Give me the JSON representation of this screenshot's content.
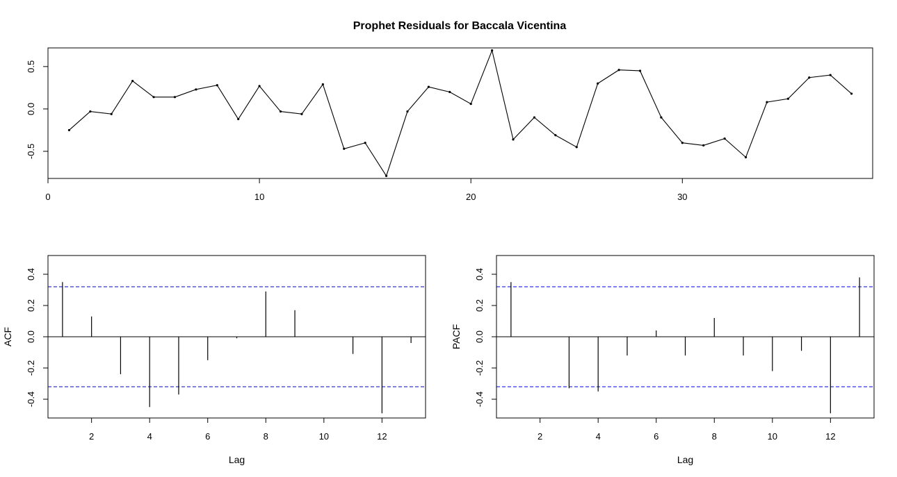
{
  "chart_data": [
    {
      "type": "line",
      "title": "Prophet Residuals for Baccala Vicentina",
      "xlabel": "",
      "ylabel": "",
      "xlim": [
        0,
        39
      ],
      "ylim": [
        -0.82,
        0.72
      ],
      "xticks": [
        0,
        10,
        20,
        30
      ],
      "yticks": [
        -0.5,
        0.0,
        0.5
      ],
      "ytick_labels": [
        "-0.5",
        "0.0",
        "0.5"
      ],
      "grid": false,
      "series": [
        {
          "color": "#000000",
          "x": [
            1,
            2,
            3,
            4,
            5,
            6,
            7,
            8,
            9,
            10,
            11,
            12,
            13,
            14,
            15,
            16,
            17,
            18,
            19,
            20,
            21,
            22,
            23,
            24,
            25,
            26,
            27,
            28,
            29,
            30,
            31,
            32,
            33,
            34,
            35,
            36,
            37,
            38
          ],
          "values": [
            -0.25,
            -0.03,
            -0.06,
            0.33,
            0.14,
            0.14,
            0.23,
            0.28,
            -0.12,
            0.27,
            -0.03,
            -0.06,
            0.29,
            -0.47,
            -0.4,
            -0.79,
            -0.03,
            0.26,
            0.2,
            0.06,
            0.69,
            -0.36,
            -0.1,
            -0.31,
            -0.45,
            0.3,
            0.46,
            0.45,
            -0.1,
            -0.4,
            -0.43,
            -0.35,
            -0.57,
            0.08,
            0.12,
            0.37,
            0.4,
            0.18
          ]
        }
      ]
    },
    {
      "type": "bar",
      "title": "",
      "xlabel": "Lag",
      "ylabel": "ACF",
      "xlim": [
        0.5,
        13.5
      ],
      "ylim": [
        -0.52,
        0.52
      ],
      "xticks": [
        2,
        4,
        6,
        8,
        10,
        12
      ],
      "yticks": [
        -0.4,
        -0.2,
        0.0,
        0.2,
        0.4
      ],
      "ytick_labels": [
        "-0.4",
        "-0.2",
        "0.0",
        "0.2",
        "0.4"
      ],
      "confidence_bound": 0.32,
      "bound_color": "#0000cc",
      "lags": [
        1,
        2,
        3,
        4,
        5,
        6,
        7,
        8,
        9,
        10,
        11,
        12,
        13
      ],
      "values": [
        0.35,
        0.13,
        -0.24,
        -0.45,
        -0.37,
        -0.15,
        -0.01,
        0.29,
        0.17,
        0.0,
        -0.11,
        -0.49,
        -0.04
      ]
    },
    {
      "type": "bar",
      "title": "",
      "xlabel": "Lag",
      "ylabel": "PACF",
      "xlim": [
        0.5,
        13.5
      ],
      "ylim": [
        -0.52,
        0.52
      ],
      "xticks": [
        2,
        4,
        6,
        8,
        10,
        12
      ],
      "yticks": [
        -0.4,
        -0.2,
        0.0,
        0.2,
        0.4
      ],
      "ytick_labels": [
        "-0.4",
        "-0.2",
        "0.0",
        "0.2",
        "0.4"
      ],
      "confidence_bound": 0.32,
      "bound_color": "#0000cc",
      "lags": [
        1,
        2,
        3,
        4,
        5,
        6,
        7,
        8,
        9,
        10,
        11,
        12,
        13
      ],
      "values": [
        0.35,
        0.0,
        -0.33,
        -0.35,
        -0.12,
        0.04,
        -0.12,
        0.12,
        -0.12,
        -0.22,
        -0.09,
        -0.49,
        0.38
      ]
    }
  ]
}
